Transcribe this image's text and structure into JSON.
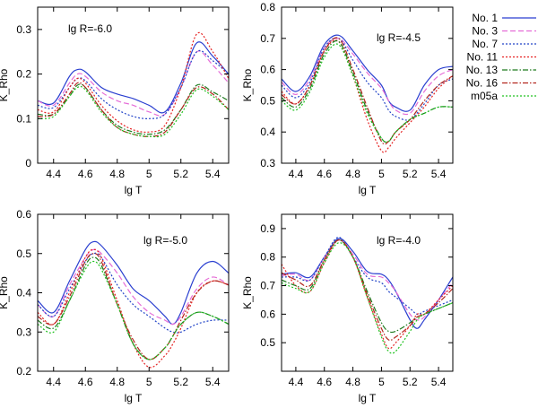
{
  "figure": {
    "legend": [
      {
        "name": "No. 1",
        "color": "#2a3fd0",
        "dash": "solid"
      },
      {
        "name": "No. 3",
        "color": "#e56cd7",
        "dash": "dashed"
      },
      {
        "name": "No. 7",
        "color": "#2345c8",
        "dash": "dotted"
      },
      {
        "name": "No. 11",
        "color": "#e52222",
        "dash": "dotted"
      },
      {
        "name": "No. 13",
        "color": "#1d7a1d",
        "dash": "dashdot"
      },
      {
        "name": "No. 16",
        "color": "#b3261e",
        "dash": "dashdot"
      },
      {
        "name": "m05a",
        "color": "#22c222",
        "dash": "dotted"
      }
    ]
  },
  "chart_data": [
    {
      "type": "line",
      "annotation": "lg R=-6.0",
      "xlabel": "lg T",
      "ylabel": "K_Rho",
      "xlim": [
        4.3,
        5.5
      ],
      "ylim": [
        0,
        0.35
      ],
      "xticks": [
        "4.4",
        "4.6",
        "4.8",
        "5",
        "5.2",
        "5.4"
      ],
      "yticks": [
        "0",
        "0.1",
        "0.2",
        "0.3"
      ],
      "x": [
        4.3,
        4.4,
        4.5,
        4.55,
        4.6,
        4.7,
        4.8,
        4.9,
        5.0,
        5.1,
        5.2,
        5.3,
        5.4,
        5.5
      ],
      "series": [
        {
          "name": "No. 1",
          "values": [
            0.14,
            0.135,
            0.195,
            0.21,
            0.205,
            0.17,
            0.155,
            0.145,
            0.13,
            0.115,
            0.18,
            0.27,
            0.24,
            0.2
          ]
        },
        {
          "name": "No. 3",
          "values": [
            0.14,
            0.13,
            0.18,
            0.2,
            0.195,
            0.16,
            0.14,
            0.13,
            0.115,
            0.11,
            0.17,
            0.25,
            0.22,
            0.18
          ]
        },
        {
          "name": "No. 7",
          "values": [
            0.13,
            0.125,
            0.17,
            0.19,
            0.185,
            0.145,
            0.12,
            0.105,
            0.1,
            0.11,
            0.17,
            0.25,
            0.23,
            0.2
          ]
        },
        {
          "name": "No. 11",
          "values": [
            0.12,
            0.115,
            0.17,
            0.19,
            0.18,
            0.13,
            0.095,
            0.075,
            0.07,
            0.085,
            0.17,
            0.29,
            0.25,
            0.19
          ]
        },
        {
          "name": "No. 13",
          "values": [
            0.11,
            0.11,
            0.15,
            0.175,
            0.17,
            0.12,
            0.085,
            0.07,
            0.065,
            0.075,
            0.12,
            0.175,
            0.16,
            0.14
          ]
        },
        {
          "name": "No. 16",
          "values": [
            0.105,
            0.11,
            0.155,
            0.18,
            0.17,
            0.12,
            0.08,
            0.065,
            0.06,
            0.07,
            0.12,
            0.17,
            0.155,
            0.12
          ]
        },
        {
          "name": "m05a",
          "values": [
            0.1,
            0.105,
            0.15,
            0.17,
            0.165,
            0.115,
            0.08,
            0.065,
            0.06,
            0.065,
            0.11,
            0.165,
            0.15,
            0.12
          ]
        }
      ]
    },
    {
      "type": "line",
      "annotation": "lg R=-4.5",
      "xlabel": "lg T",
      "ylabel": "K_Rho",
      "xlim": [
        4.3,
        5.5
      ],
      "ylim": [
        0.3,
        0.8
      ],
      "xticks": [
        "4.4",
        "4.6",
        "4.8",
        "5",
        "5.2",
        "5.4"
      ],
      "yticks": [
        "0.3",
        "0.4",
        "0.5",
        "0.6",
        "0.7",
        "0.8"
      ],
      "x": [
        4.3,
        4.4,
        4.5,
        4.6,
        4.7,
        4.8,
        4.9,
        5.0,
        5.05,
        5.1,
        5.2,
        5.3,
        5.4,
        5.5
      ],
      "series": [
        {
          "name": "No. 1",
          "values": [
            0.57,
            0.53,
            0.58,
            0.68,
            0.71,
            0.66,
            0.6,
            0.55,
            0.5,
            0.48,
            0.47,
            0.55,
            0.6,
            0.61
          ]
        },
        {
          "name": "No. 3",
          "values": [
            0.56,
            0.52,
            0.57,
            0.67,
            0.7,
            0.65,
            0.59,
            0.54,
            0.5,
            0.47,
            0.46,
            0.53,
            0.58,
            0.6
          ]
        },
        {
          "name": "No. 7",
          "values": [
            0.55,
            0.51,
            0.56,
            0.67,
            0.7,
            0.63,
            0.56,
            0.51,
            0.47,
            0.45,
            0.44,
            0.49,
            0.55,
            0.57
          ]
        },
        {
          "name": "No. 11",
          "values": [
            0.53,
            0.49,
            0.55,
            0.66,
            0.69,
            0.58,
            0.44,
            0.34,
            0.35,
            0.38,
            0.43,
            0.48,
            0.54,
            0.58
          ]
        },
        {
          "name": "No. 13",
          "values": [
            0.51,
            0.48,
            0.54,
            0.65,
            0.69,
            0.59,
            0.47,
            0.38,
            0.37,
            0.4,
            0.44,
            0.46,
            0.48,
            0.48
          ]
        },
        {
          "name": "No. 16",
          "values": [
            0.52,
            0.49,
            0.55,
            0.66,
            0.7,
            0.6,
            0.48,
            0.37,
            0.37,
            0.4,
            0.44,
            0.5,
            0.55,
            0.58
          ]
        },
        {
          "name": "m05a",
          "values": [
            0.5,
            0.47,
            0.53,
            0.64,
            0.68,
            0.58,
            0.46,
            0.38,
            0.37,
            0.4,
            0.44,
            0.46,
            0.48,
            0.48
          ]
        }
      ]
    },
    {
      "type": "line",
      "annotation": "lg R=-5.0",
      "xlabel": "lg T",
      "ylabel": "K_Rho",
      "xlim": [
        4.3,
        5.5
      ],
      "ylim": [
        0.2,
        0.6
      ],
      "xticks": [
        "4.4",
        "4.6",
        "4.8",
        "5",
        "5.2",
        "5.4"
      ],
      "yticks": [
        "0.2",
        "0.3",
        "0.4",
        "0.5",
        "0.6"
      ],
      "x": [
        4.3,
        4.4,
        4.5,
        4.6,
        4.65,
        4.7,
        4.8,
        4.9,
        5.0,
        5.1,
        5.15,
        5.2,
        5.3,
        5.4,
        5.5
      ],
      "series": [
        {
          "name": "No. 1",
          "values": [
            0.38,
            0.35,
            0.43,
            0.51,
            0.53,
            0.52,
            0.47,
            0.41,
            0.38,
            0.34,
            0.32,
            0.35,
            0.45,
            0.48,
            0.45
          ]
        },
        {
          "name": "No. 3",
          "values": [
            0.37,
            0.34,
            0.42,
            0.49,
            0.51,
            0.5,
            0.45,
            0.39,
            0.35,
            0.33,
            0.32,
            0.34,
            0.41,
            0.44,
            0.42
          ]
        },
        {
          "name": "No. 7",
          "values": [
            0.37,
            0.34,
            0.41,
            0.48,
            0.5,
            0.49,
            0.42,
            0.37,
            0.34,
            0.31,
            0.3,
            0.3,
            0.32,
            0.33,
            0.33
          ]
        },
        {
          "name": "No. 11",
          "values": [
            0.35,
            0.32,
            0.4,
            0.49,
            0.51,
            0.49,
            0.38,
            0.27,
            0.21,
            0.24,
            0.27,
            0.31,
            0.4,
            0.43,
            0.42
          ]
        },
        {
          "name": "No. 13",
          "values": [
            0.33,
            0.31,
            0.38,
            0.47,
            0.49,
            0.47,
            0.37,
            0.27,
            0.23,
            0.26,
            0.29,
            0.32,
            0.35,
            0.34,
            0.32
          ]
        },
        {
          "name": "No. 16",
          "values": [
            0.34,
            0.32,
            0.39,
            0.48,
            0.5,
            0.48,
            0.37,
            0.28,
            0.23,
            0.26,
            0.29,
            0.33,
            0.4,
            0.43,
            0.42
          ]
        },
        {
          "name": "m05a",
          "values": [
            0.32,
            0.3,
            0.38,
            0.46,
            0.48,
            0.46,
            0.37,
            0.27,
            0.23,
            0.26,
            0.29,
            0.32,
            0.35,
            0.34,
            0.32
          ]
        }
      ]
    },
    {
      "type": "line",
      "annotation": "lg R=-4.0",
      "xlabel": "lg T",
      "ylabel": "K_Rho",
      "xlim": [
        4.3,
        5.5
      ],
      "ylim": [
        0.4,
        0.95
      ],
      "xticks": [
        "4.4",
        "4.6",
        "4.8",
        "5",
        "5.2",
        "5.4"
      ],
      "yticks": [
        "0.5",
        "0.6",
        "0.7",
        "0.8",
        "0.9"
      ],
      "x": [
        4.3,
        4.4,
        4.5,
        4.6,
        4.7,
        4.8,
        4.9,
        5.0,
        5.05,
        5.1,
        5.2,
        5.25,
        5.3,
        5.4,
        5.5
      ],
      "series": [
        {
          "name": "No. 1",
          "values": [
            0.74,
            0.745,
            0.73,
            0.8,
            0.865,
            0.82,
            0.75,
            0.74,
            0.72,
            0.68,
            0.58,
            0.55,
            0.58,
            0.65,
            0.73
          ]
        },
        {
          "name": "No. 3",
          "values": [
            0.735,
            0.74,
            0.72,
            0.8,
            0.86,
            0.81,
            0.74,
            0.73,
            0.71,
            0.68,
            0.6,
            0.58,
            0.59,
            0.65,
            0.71
          ]
        },
        {
          "name": "No. 7",
          "values": [
            0.73,
            0.73,
            0.72,
            0.8,
            0.87,
            0.8,
            0.73,
            0.71,
            0.68,
            0.66,
            0.62,
            0.6,
            0.61,
            0.63,
            0.65
          ]
        },
        {
          "name": "No. 11",
          "values": [
            0.775,
            0.7,
            0.68,
            0.78,
            0.86,
            0.8,
            0.66,
            0.53,
            0.48,
            0.5,
            0.56,
            0.6,
            0.6,
            0.65,
            0.7
          ]
        },
        {
          "name": "No. 13",
          "values": [
            0.72,
            0.7,
            0.69,
            0.79,
            0.86,
            0.8,
            0.68,
            0.57,
            0.54,
            0.54,
            0.57,
            0.59,
            0.6,
            0.62,
            0.64
          ]
        },
        {
          "name": "No. 16",
          "values": [
            0.745,
            0.72,
            0.7,
            0.79,
            0.86,
            0.8,
            0.67,
            0.55,
            0.51,
            0.52,
            0.56,
            0.59,
            0.6,
            0.64,
            0.69
          ]
        },
        {
          "name": "m05a",
          "values": [
            0.71,
            0.69,
            0.68,
            0.78,
            0.85,
            0.8,
            0.66,
            0.52,
            0.47,
            0.47,
            0.54,
            0.58,
            0.6,
            0.62,
            0.64
          ]
        }
      ]
    }
  ]
}
